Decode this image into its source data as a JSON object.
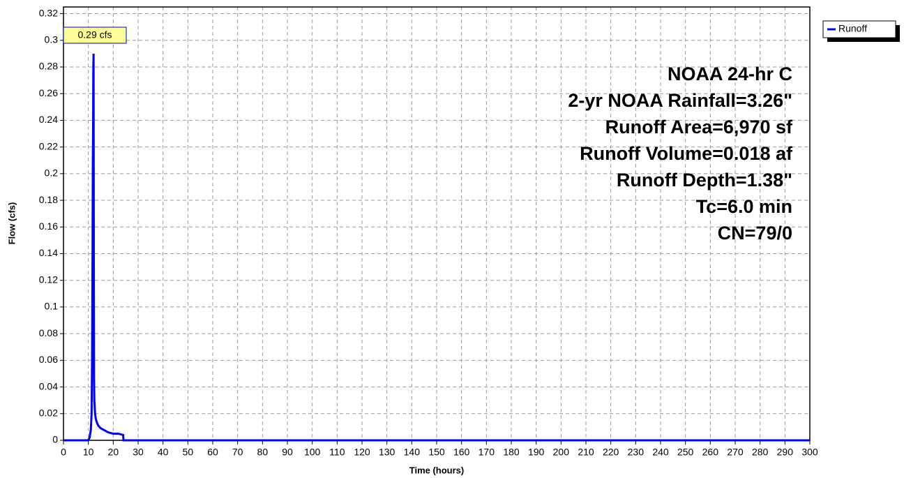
{
  "chart_data": {
    "type": "line",
    "x_label": "Time  (hours)",
    "y_label": "Flow  (cfs)",
    "peak_label": "0.29 cfs",
    "annotations": [
      "NOAA 24-hr C",
      "2-yr NOAA Rainfall=3.26\"",
      "Runoff Area=6,970 sf",
      "Runoff Volume=0.018 af",
      "Runoff Depth=1.38\"",
      "Tc=6.0 min",
      "CN=79/0"
    ],
    "x": [
      0,
      10,
      10.5,
      11,
      11.3,
      11.5,
      11.7,
      11.8,
      11.9,
      12.0,
      12.1,
      12.2,
      12.3,
      12.4,
      12.5,
      12.7,
      13,
      13.5,
      14,
      15,
      16,
      18,
      20,
      22,
      24,
      24.1,
      300
    ],
    "series": [
      {
        "name": "Runoff",
        "color": "#0000ff",
        "values": [
          0,
          0,
          0.002,
          0.008,
          0.02,
          0.06,
          0.15,
          0.21,
          0.23,
          0.28,
          0.29,
          0.13,
          0.045,
          0.03,
          0.027,
          0.02,
          0.016,
          0.013,
          0.011,
          0.009,
          0.008,
          0.006,
          0.005,
          0.005,
          0.004,
          0,
          0
        ]
      }
    ],
    "xlim": [
      0,
      300
    ],
    "xticks": [
      0,
      10,
      20,
      30,
      40,
      50,
      60,
      70,
      80,
      90,
      100,
      110,
      120,
      130,
      140,
      150,
      160,
      170,
      180,
      190,
      200,
      210,
      220,
      230,
      240,
      250,
      260,
      270,
      280,
      290,
      300
    ],
    "ylim": [
      0,
      0.325
    ],
    "yticks": [
      0,
      0.02,
      0.04,
      0.06,
      0.08,
      0.1,
      0.12,
      0.14,
      0.16,
      0.18,
      0.2,
      0.22,
      0.24,
      0.26,
      0.28,
      0.3,
      0.32
    ],
    "grid": true,
    "legend": "top-right"
  }
}
